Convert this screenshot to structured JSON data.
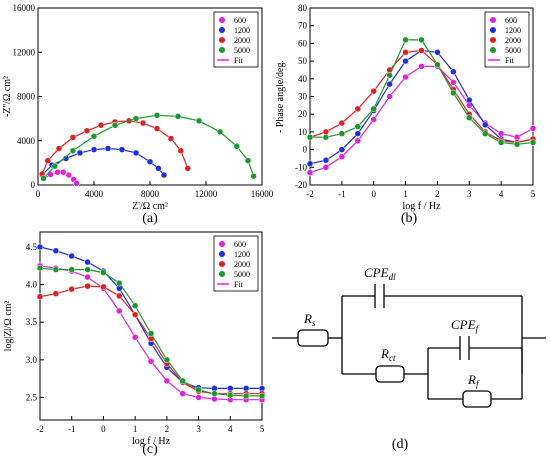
{
  "chart_data": [
    {
      "type": "scatter",
      "panel_label": "(a)",
      "xlabel": "Z'/Ω cm²",
      "ylabel": "-Z''/Ω cm²",
      "xlim": [
        0,
        16000
      ],
      "ylim": [
        0,
        16000
      ],
      "xticks": [
        0,
        4000,
        8000,
        12000,
        16000
      ],
      "yticks": [
        0,
        4000,
        8000,
        12000,
        16000
      ],
      "legend": {
        "position": "top-right",
        "entries": [
          "600",
          "1200",
          "2000",
          "5000",
          "Fit"
        ]
      },
      "series": [
        {
          "name": "600",
          "color": "#e020e0",
          "x": [
            400,
            900,
            1400,
            1800,
            2200,
            2550,
            2750
          ],
          "y": [
            550,
            950,
            1150,
            1150,
            900,
            500,
            150
          ]
        },
        {
          "name": "1200",
          "color": "#1e2ee8",
          "x": [
            300,
            1000,
            2000,
            3000,
            4000,
            5000,
            6000,
            7000,
            8000,
            8600,
            9000
          ],
          "y": [
            900,
            1800,
            2400,
            2900,
            3200,
            3300,
            3200,
            2900,
            2100,
            1500,
            900
          ]
        },
        {
          "name": "2000",
          "color": "#e02020",
          "x": [
            300,
            700,
            1500,
            2500,
            3500,
            4500,
            5500,
            6500,
            7500,
            8500,
            9500,
            10200,
            10700
          ],
          "y": [
            1000,
            2200,
            3300,
            4300,
            4900,
            5400,
            5700,
            5800,
            5600,
            5100,
            4200,
            3100,
            1500
          ]
        },
        {
          "name": "5000",
          "color": "#1a9a2a",
          "x": [
            400,
            1200,
            2500,
            4000,
            5500,
            7000,
            8500,
            10000,
            11500,
            13000,
            14200,
            15000,
            15400
          ],
          "y": [
            600,
            1700,
            3100,
            4400,
            5400,
            6000,
            6300,
            6200,
            5800,
            4800,
            3500,
            2200,
            800
          ]
        }
      ],
      "fit": {
        "name": "Fit",
        "color": "#ff00ff"
      }
    },
    {
      "type": "scatter",
      "panel_label": "(b)",
      "xlabel": "log f / Hz",
      "ylabel": "- Phase angle/deg.",
      "xlim": [
        -2,
        5
      ],
      "ylim": [
        -20,
        80
      ],
      "xticks": [
        -2,
        -1,
        0,
        1,
        2,
        3,
        4,
        5
      ],
      "yticks": [
        -20,
        -10,
        0,
        10,
        20,
        30,
        40,
        50,
        60,
        70,
        80
      ],
      "legend": {
        "position": "top-right",
        "entries": [
          "600",
          "1200",
          "2000",
          "5000",
          "Fit"
        ]
      },
      "series": [
        {
          "name": "600",
          "color": "#e020e0",
          "x": [
            -2,
            -1.5,
            -1,
            -0.5,
            0,
            0.5,
            1,
            1.5,
            2,
            2.5,
            3,
            3.5,
            4,
            4.5,
            5
          ],
          "y": [
            -13,
            -10,
            -4,
            5,
            17,
            30,
            41,
            47,
            47,
            38,
            25,
            15,
            9,
            7,
            12
          ]
        },
        {
          "name": "1200",
          "color": "#1e2ee8",
          "x": [
            -2,
            -1.5,
            -1,
            -0.5,
            0,
            0.5,
            1,
            1.5,
            2,
            2.5,
            3,
            3.5,
            4,
            4.5,
            5
          ],
          "y": [
            -8,
            -6,
            0,
            9,
            22,
            37,
            50,
            56,
            55,
            44,
            28,
            14,
            6,
            4,
            6
          ]
        },
        {
          "name": "2000",
          "color": "#e02020",
          "x": [
            -2,
            -1.5,
            -1,
            -0.5,
            0,
            0.5,
            1,
            1.5,
            2,
            2.5,
            3,
            3.5,
            4,
            4.5,
            5
          ],
          "y": [
            7,
            10,
            15,
            23,
            33,
            45,
            55,
            56,
            48,
            34,
            20,
            10,
            5,
            4,
            6
          ]
        },
        {
          "name": "5000",
          "color": "#1a9a2a",
          "x": [
            -2,
            -1.5,
            -1,
            -0.5,
            0,
            0.5,
            1,
            1.5,
            2,
            2.5,
            3,
            3.5,
            4,
            4.5,
            5
          ],
          "y": [
            7,
            7,
            9,
            13,
            23,
            42,
            62,
            62,
            48,
            32,
            18,
            9,
            4,
            3,
            4
          ]
        }
      ],
      "fit": {
        "name": "Fit",
        "color": "#ff00ff"
      }
    },
    {
      "type": "scatter",
      "panel_label": "(c)",
      "xlabel": "log f / Hz",
      "ylabel": "log|Z|/Ω cm²",
      "xlim": [
        -2,
        5
      ],
      "ylim": [
        2.2,
        4.7
      ],
      "xticks": [
        -2,
        -1,
        0,
        1,
        2,
        3,
        4,
        5
      ],
      "yticks": [
        2.5,
        3.0,
        3.5,
        4.0,
        4.5
      ],
      "legend": {
        "position": "top-right",
        "entries": [
          "600",
          "1200",
          "2000",
          "5000",
          "Fit"
        ]
      },
      "series": [
        {
          "name": "600",
          "color": "#e020e0",
          "x": [
            -2,
            -1.5,
            -1,
            -0.5,
            0,
            0.5,
            1,
            1.5,
            2,
            2.5,
            3,
            3.5,
            4,
            4.5,
            5
          ],
          "y": [
            4.25,
            4.22,
            4.18,
            4.1,
            3.95,
            3.65,
            3.3,
            2.98,
            2.72,
            2.55,
            2.5,
            2.48,
            2.47,
            2.47,
            2.47
          ]
        },
        {
          "name": "1200",
          "color": "#1e2ee8",
          "x": [
            -2,
            -1.5,
            -1,
            -0.5,
            0,
            0.5,
            1,
            1.5,
            2,
            2.5,
            3,
            3.5,
            4,
            4.5,
            5
          ],
          "y": [
            4.5,
            4.45,
            4.38,
            4.3,
            4.18,
            3.95,
            3.6,
            3.22,
            2.9,
            2.7,
            2.63,
            2.62,
            2.62,
            2.62,
            2.62
          ]
        },
        {
          "name": "2000",
          "color": "#e02020",
          "x": [
            -2,
            -1.5,
            -1,
            -0.5,
            0,
            0.5,
            1,
            1.5,
            2,
            2.5,
            3,
            3.5,
            4,
            4.5,
            5
          ],
          "y": [
            3.84,
            3.88,
            3.94,
            3.98,
            3.97,
            3.85,
            3.6,
            3.28,
            2.95,
            2.7,
            2.58,
            2.55,
            2.55,
            2.55,
            2.55
          ]
        },
        {
          "name": "5000",
          "color": "#1a9a2a",
          "x": [
            -2,
            -1.5,
            -1,
            -0.5,
            0,
            0.5,
            1,
            1.5,
            2,
            2.5,
            3,
            3.5,
            4,
            4.5,
            5
          ],
          "y": [
            4.22,
            4.2,
            4.2,
            4.2,
            4.16,
            4.02,
            3.72,
            3.35,
            3.0,
            2.72,
            2.6,
            2.55,
            2.53,
            2.52,
            2.52
          ]
        }
      ],
      "fit": {
        "name": "Fit",
        "color": "#ff00ff"
      }
    }
  ],
  "circuit": {
    "panel_label": "(d)",
    "rs_label": "R",
    "rs_sub": "s",
    "cpedl_label": "CPE",
    "cpedl_sub": "dl",
    "rct_label": "R",
    "rct_sub": "ct",
    "cpef_label": "CPE",
    "cpef_sub": "f",
    "rf_label": "R",
    "rf_sub": "f"
  }
}
